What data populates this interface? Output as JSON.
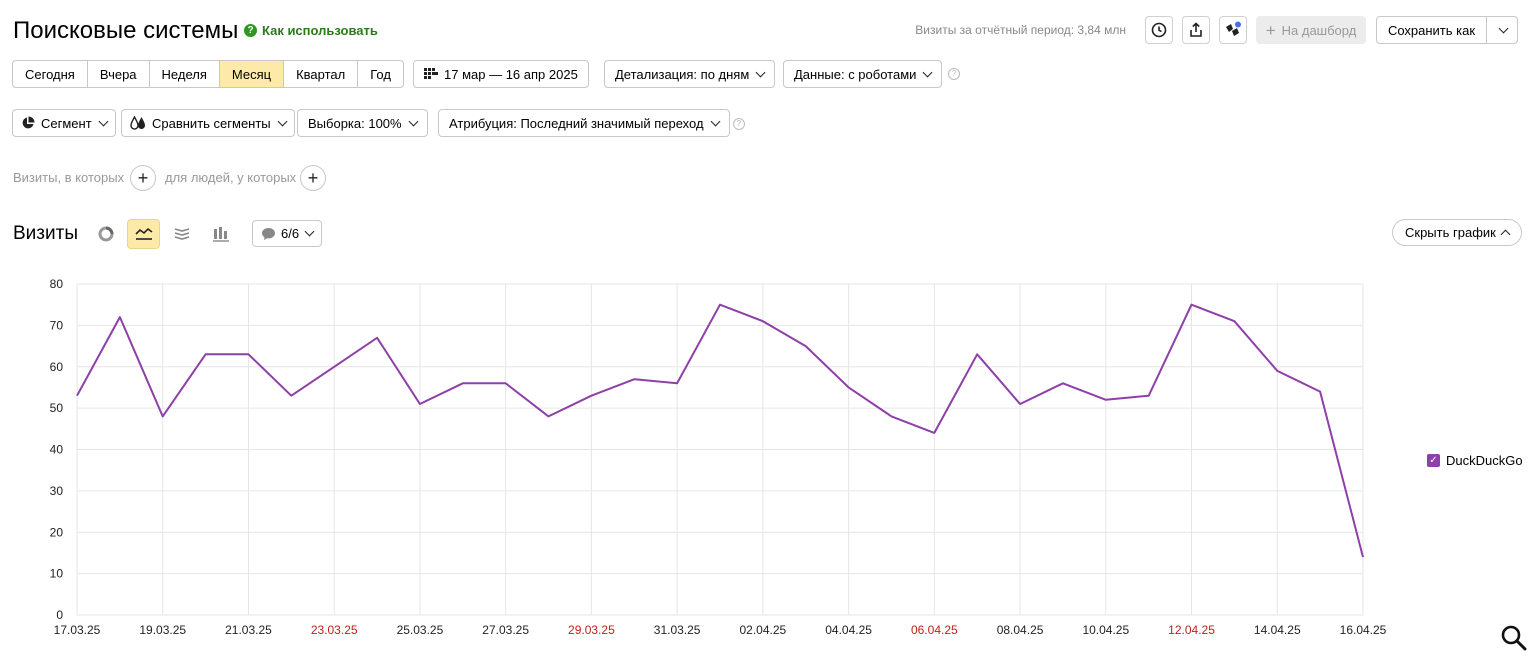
{
  "header": {
    "title": "Поисковые системы",
    "help_label": "Как использовать",
    "visits_summary": "Визиты за отчётный период: 3,84 млн",
    "dashboard_label": "На дашборд",
    "save_label": "Сохранить как"
  },
  "periods": {
    "items": [
      "Сегодня",
      "Вчера",
      "Неделя",
      "Месяц",
      "Квартал",
      "Год"
    ],
    "active": "Месяц"
  },
  "date_range": "17 мар — 16 апр 2025",
  "detail_label": "Детализация: по дням",
  "data_label": "Данные: с роботами",
  "filters": {
    "segment_label": "Сегмент",
    "compare_label": "Сравнить сегменты",
    "sample_label": "Выборка: 100%",
    "attribution_label": "Атрибуция: Последний значимый переход"
  },
  "conditions": {
    "visits_label": "Визиты, в которых",
    "people_label": "для людей, у которых"
  },
  "chart_section": {
    "title": "Визиты",
    "notes_label": "6/6",
    "hide_label": "Скрыть график"
  },
  "colors": {
    "line": "#8e3fa8",
    "weekend": "#c0201c",
    "active_bg": "#fdeaa8"
  },
  "chart_data": {
    "type": "line",
    "x": [
      "17.03.25",
      "18.03.25",
      "19.03.25",
      "20.03.25",
      "21.03.25",
      "22.03.25",
      "23.03.25",
      "24.03.25",
      "25.03.25",
      "26.03.25",
      "27.03.25",
      "28.03.25",
      "29.03.25",
      "30.03.25",
      "31.03.25",
      "01.04.25",
      "02.04.25",
      "03.04.25",
      "04.04.25",
      "05.04.25",
      "06.04.25",
      "07.04.25",
      "08.04.25",
      "09.04.25",
      "10.04.25",
      "11.04.25",
      "12.04.25",
      "13.04.25",
      "14.04.25",
      "15.04.25",
      "16.04.25"
    ],
    "x_tick_labels": [
      "17.03.25",
      "19.03.25",
      "21.03.25",
      "23.03.25",
      "25.03.25",
      "27.03.25",
      "29.03.25",
      "31.03.25",
      "02.04.25",
      "04.04.25",
      "06.04.25",
      "08.04.25",
      "10.04.25",
      "12.04.25",
      "14.04.25",
      "16.04.25"
    ],
    "weekend_ticks": [
      "23.03.25",
      "29.03.25",
      "06.04.25",
      "12.04.25"
    ],
    "series": [
      {
        "name": "DuckDuckGo",
        "values": [
          53,
          72,
          48,
          63,
          63,
          53,
          60,
          67,
          51,
          56,
          56,
          48,
          53,
          57,
          56,
          75,
          71,
          65,
          55,
          48,
          44,
          63,
          51,
          56,
          52,
          53,
          75,
          71,
          59,
          54,
          14
        ]
      }
    ],
    "ylim": [
      0,
      80
    ],
    "y_ticks": [
      0,
      10,
      20,
      30,
      40,
      50,
      60,
      70,
      80
    ],
    "grid": true,
    "legend_placement": "right"
  }
}
